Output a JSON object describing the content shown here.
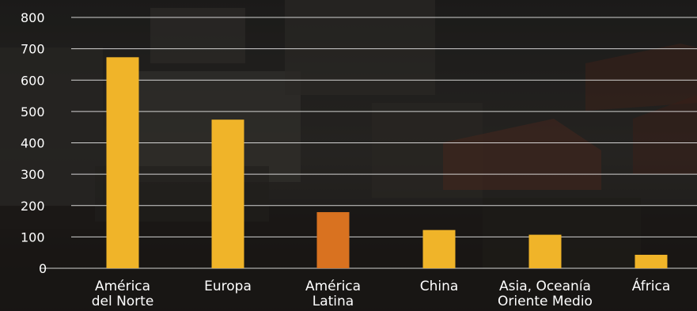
{
  "colors": {
    "bar_default": "#f0b429",
    "bar_highlight": "#d97220",
    "grid": "#f2f2f2",
    "text": "#ffffff"
  },
  "chart_data": {
    "type": "bar",
    "title": "",
    "xlabel": "",
    "ylabel": "",
    "ylim": [
      0,
      800
    ],
    "yticks": [
      "0",
      "100",
      "200",
      "300",
      "400",
      "500",
      "600",
      "700",
      "800"
    ],
    "grid": true,
    "legend": "none",
    "highlight_category_index": 2,
    "categories": [
      [
        "América",
        "del Norte"
      ],
      [
        "Europa"
      ],
      [
        "América",
        "Latina"
      ],
      [
        "China"
      ],
      [
        "Asia, Oceanía",
        "Oriente Medio"
      ],
      [
        "África"
      ]
    ],
    "values": [
      673,
      474,
      179,
      122,
      107,
      43
    ]
  }
}
